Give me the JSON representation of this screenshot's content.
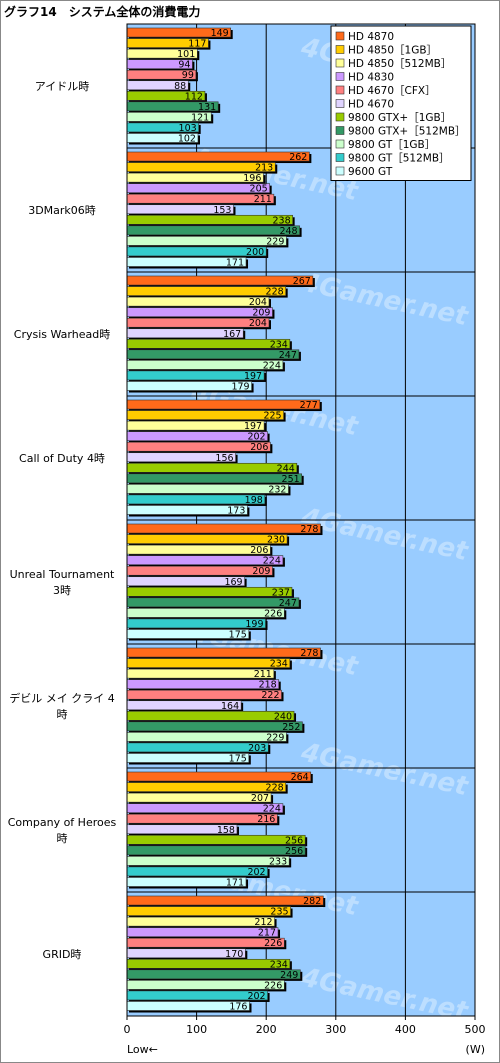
{
  "chart_data": {
    "type": "bar",
    "orientation": "horizontal",
    "title": "グラフ14　システム全体の消費電力",
    "x_axis_note": "Low←",
    "unit": "(W)",
    "xlim": [
      0,
      500
    ],
    "xticks": [
      0,
      100,
      200,
      300,
      400,
      500
    ],
    "grid": true,
    "legend_position": "top-right",
    "categories": [
      [
        "アイドル時"
      ],
      [
        "3DMark06時"
      ],
      [
        "Crysis Warhead時"
      ],
      [
        "Call of Duty 4時"
      ],
      [
        "Unreal Tournament",
        "3時"
      ],
      [
        "デビル メイ クライ 4",
        "時"
      ],
      [
        "Company of Heroes",
        "時"
      ],
      [
        "GRID時"
      ]
    ],
    "series": [
      {
        "name": "HD 4870",
        "color": "#ff6a1a",
        "values": [
          149,
          262,
          267,
          277,
          278,
          278,
          264,
          282
        ]
      },
      {
        "name": "HD 4850［1GB］",
        "color": "#ffcc00",
        "values": [
          117,
          213,
          228,
          225,
          230,
          234,
          228,
          235
        ]
      },
      {
        "name": "HD 4850［512MB］",
        "color": "#ffff99",
        "values": [
          101,
          196,
          204,
          197,
          206,
          211,
          207,
          212
        ]
      },
      {
        "name": "HD 4830",
        "color": "#cc99ff",
        "values": [
          94,
          205,
          209,
          202,
          224,
          218,
          224,
          217
        ]
      },
      {
        "name": "HD 4670［CFX］",
        "color": "#ff8080",
        "values": [
          99,
          211,
          204,
          206,
          209,
          222,
          216,
          226
        ]
      },
      {
        "name": "HD 4670",
        "color": "#e0d4ff",
        "values": [
          88,
          153,
          167,
          156,
          169,
          164,
          158,
          170
        ]
      },
      {
        "name": "9800 GTX+［1GB］",
        "color": "#99cc00",
        "values": [
          112,
          238,
          234,
          244,
          237,
          240,
          256,
          234
        ]
      },
      {
        "name": "9800 GTX+［512MB］",
        "color": "#339966",
        "values": [
          131,
          248,
          247,
          251,
          247,
          252,
          256,
          249
        ]
      },
      {
        "name": "9800 GT［1GB］",
        "color": "#ccffcc",
        "values": [
          121,
          229,
          224,
          232,
          226,
          229,
          233,
          226
        ]
      },
      {
        "name": "9800 GT［512MB］",
        "color": "#33cccc",
        "values": [
          103,
          200,
          197,
          198,
          199,
          203,
          202,
          202
        ]
      },
      {
        "name": "9600 GT",
        "color": "#ccffff",
        "values": [
          102,
          171,
          179,
          173,
          175,
          175,
          171,
          176
        ]
      }
    ],
    "plot_background": "#99ccff",
    "watermark": "4Gamer.net"
  }
}
